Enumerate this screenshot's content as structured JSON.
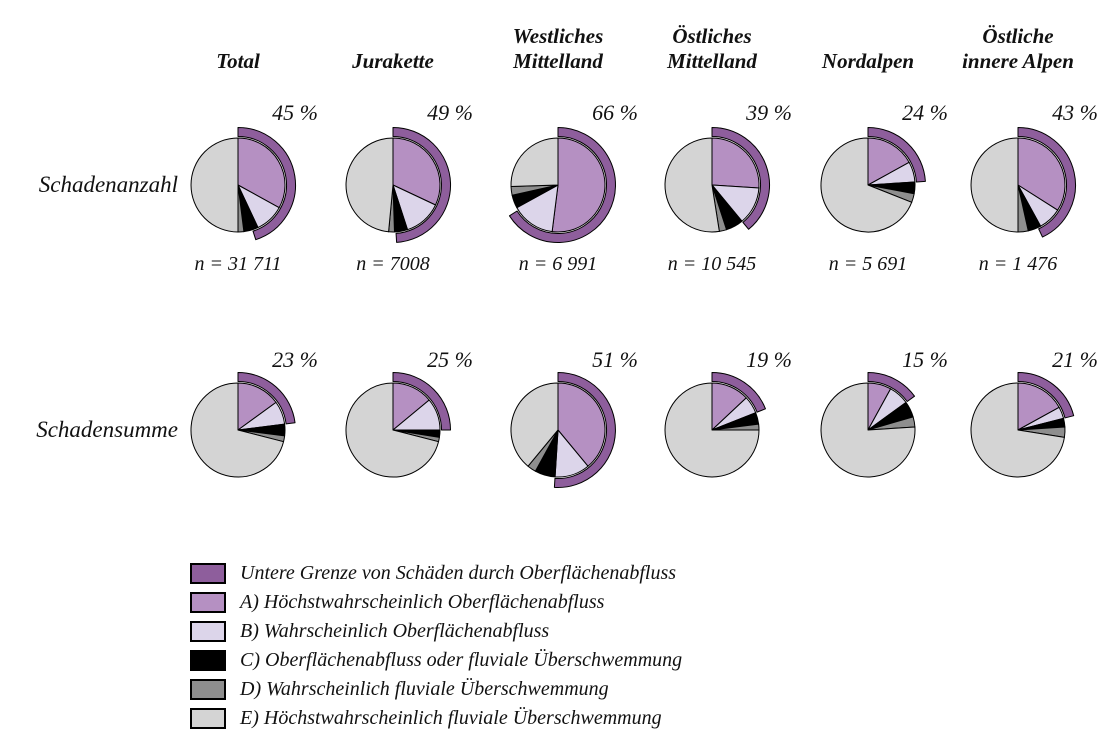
{
  "chart_data": {
    "type": "pie",
    "title": "",
    "description_rows": [
      "Schadenanzahl",
      "Schadensumme"
    ],
    "categories": [
      "bound",
      "A",
      "B",
      "C",
      "D",
      "E"
    ],
    "columns": [
      {
        "header": "Total"
      },
      {
        "header": "Jurakette"
      },
      {
        "header": "Westliches\nMittelland"
      },
      {
        "header": "Östliches\nMittelland"
      },
      {
        "header": "Nordalpen"
      },
      {
        "header": "Östliche\ninnere Alpen"
      }
    ],
    "rows": [
      {
        "label": "Schadenanzahl",
        "pies": [
          {
            "column": "Total",
            "bound_pct": 45,
            "bound_label": "45 %",
            "n_label": "n = 31 711",
            "values": {
              "A": 33,
              "B": 10,
              "C": 5,
              "D": 2,
              "E": 50
            }
          },
          {
            "column": "Jurakette",
            "bound_pct": 49,
            "bound_label": "49 %",
            "n_label": "n = 7008",
            "values": {
              "A": 32,
              "B": 13,
              "C": 4.5,
              "D": 2,
              "E": 48.5
            }
          },
          {
            "column": "Westliches Mittelland",
            "bound_pct": 66,
            "bound_label": "66 %",
            "n_label": "n = 6 991",
            "values": {
              "A": 52,
              "B": 15,
              "C": 4.5,
              "D": 3,
              "E": 25.5
            }
          },
          {
            "column": "Östliches Mittelland",
            "bound_pct": 39,
            "bound_label": "39 %",
            "n_label": "n = 10 545",
            "values": {
              "A": 26,
              "B": 13,
              "C": 6,
              "D": 2.5,
              "E": 52.5
            }
          },
          {
            "column": "Nordalpen",
            "bound_pct": 24,
            "bound_label": "24 %",
            "n_label": "n = 5 691",
            "values": {
              "A": 17,
              "B": 7,
              "C": 4,
              "D": 3,
              "E": 69
            }
          },
          {
            "column": "Östliche innere Alpen",
            "bound_pct": 43,
            "bound_label": "43 %",
            "n_label": "n = 1 476",
            "values": {
              "A": 34,
              "B": 8,
              "C": 4.5,
              "D": 3.5,
              "E": 50
            }
          }
        ]
      },
      {
        "label": "Schadensumme",
        "pies": [
          {
            "column": "Total",
            "bound_pct": 23,
            "bound_label": "23 %",
            "values": {
              "A": 15,
              "B": 8,
              "C": 4,
              "D": 2,
              "E": 71
            }
          },
          {
            "column": "Jurakette",
            "bound_pct": 25,
            "bound_label": "25 %",
            "values": {
              "A": 14,
              "B": 11,
              "C": 2.5,
              "D": 1.5,
              "E": 71
            }
          },
          {
            "column": "Westliches Mittelland",
            "bound_pct": 51,
            "bound_label": "51 %",
            "values": {
              "A": 39,
              "B": 12,
              "C": 7,
              "D": 3,
              "E": 39
            }
          },
          {
            "column": "Östliches Mittelland",
            "bound_pct": 19,
            "bound_label": "19 %",
            "values": {
              "A": 13,
              "B": 6,
              "C": 4,
              "D": 2,
              "E": 75
            }
          },
          {
            "column": "Nordalpen",
            "bound_pct": 15,
            "bound_label": "15 %",
            "values": {
              "A": 8,
              "B": 7,
              "C": 5.5,
              "D": 3.5,
              "E": 76
            }
          },
          {
            "column": "Östliche innere Alpen",
            "bound_pct": 21,
            "bound_label": "21 %",
            "values": {
              "A": 17,
              "B": 4,
              "C": 3,
              "D": 3.5,
              "E": 72.5
            }
          }
        ]
      }
    ],
    "legend": [
      {
        "key": "bound",
        "color": "#8e5e9c",
        "label": "Untere Grenze von Schäden durch Oberflächenabfluss"
      },
      {
        "key": "A",
        "color": "#b590c2",
        "label": "A) Höchstwahrscheinlich Oberflächenabfluss"
      },
      {
        "key": "B",
        "color": "#dcd5ea",
        "label": "B) Wahrscheinlich Oberflächenabfluss"
      },
      {
        "key": "C",
        "color": "#000000",
        "label": "C) Oberflächenabfluss oder fluviale Überschwemmung"
      },
      {
        "key": "D",
        "color": "#8e8e8e",
        "label": "D) Wahrscheinlich fluviale Überschwemmung"
      },
      {
        "key": "E",
        "color": "#d4d4d4",
        "label": "E) Höchstwahrscheinlich fluviale Überschwemmung"
      }
    ],
    "layout": {
      "grid": "2 rows × 6 columns of pies",
      "ring_meaning": "outer arc spans bound_pct of circle, clockwise from 12 o'clock",
      "legend_position": "bottom-left",
      "pct_label_position": "upper right of each pie",
      "n_label_position": "below first-row pies"
    }
  }
}
